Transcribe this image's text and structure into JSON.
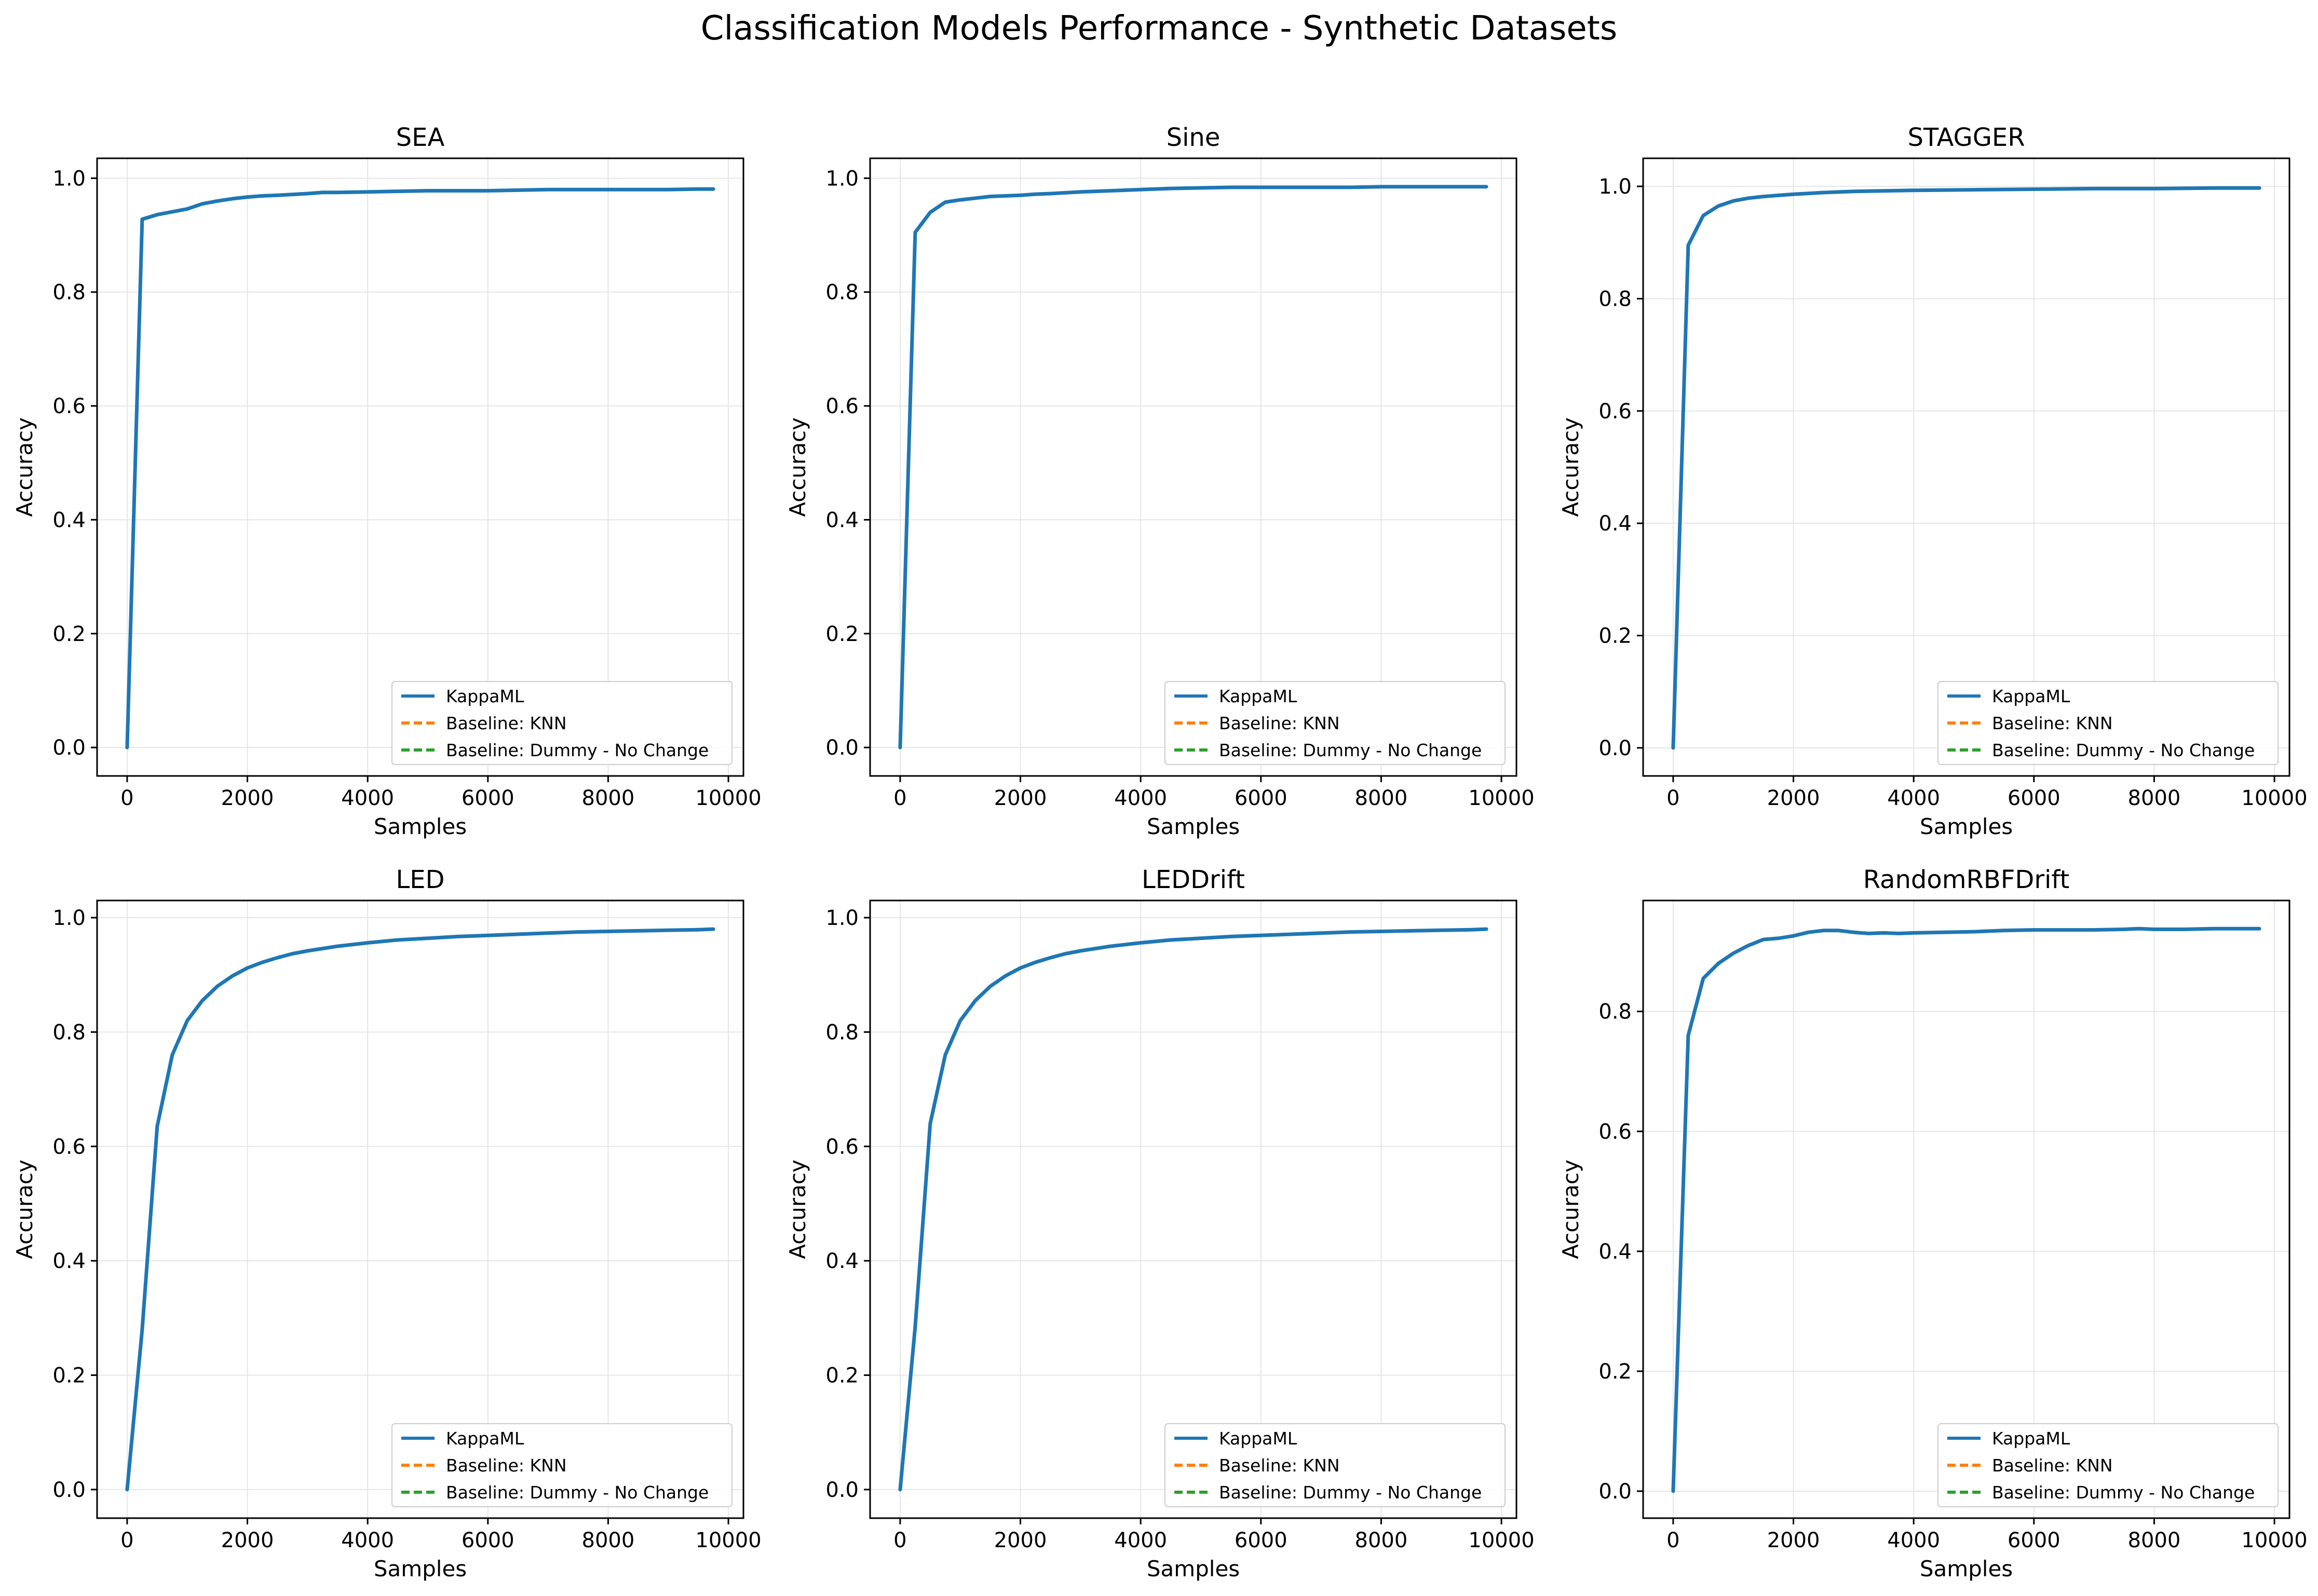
{
  "figure": {
    "title": "Classification Models Performance - Synthetic Datasets"
  },
  "colors": {
    "kappaml": "#1f77b4",
    "knn": "#ff7f0e",
    "dummy": "#2ca02c",
    "grid": "#e6e6e6"
  },
  "chart_data": [
    {
      "type": "line",
      "title": "SEA",
      "xlabel": "Samples",
      "ylabel": "Accuracy",
      "xlim": [
        -500,
        10250
      ],
      "ylim": [
        -0.05,
        1.035
      ],
      "xticks": [
        0,
        2000,
        4000,
        6000,
        8000,
        10000
      ],
      "yticks": [
        0.0,
        0.2,
        0.4,
        0.6,
        0.8,
        1.0
      ],
      "grid": true,
      "legend_position": "lower-right",
      "legend": [
        "KappaML",
        "Baseline: KNN",
        "Baseline: Dummy - No Change"
      ],
      "series": [
        {
          "name": "KappaML",
          "x": [
            0,
            250,
            500,
            750,
            1000,
            1250,
            1500,
            1750,
            2000,
            2250,
            2500,
            3000,
            3250,
            3500,
            4000,
            4500,
            5000,
            5500,
            6000,
            6500,
            7000,
            7500,
            8000,
            8500,
            9000,
            9500,
            9750
          ],
          "y": [
            0.0,
            0.928,
            0.936,
            0.941,
            0.946,
            0.955,
            0.96,
            0.964,
            0.967,
            0.969,
            0.97,
            0.973,
            0.975,
            0.975,
            0.976,
            0.977,
            0.978,
            0.978,
            0.978,
            0.979,
            0.98,
            0.98,
            0.98,
            0.98,
            0.98,
            0.981,
            0.981
          ]
        }
      ]
    },
    {
      "type": "line",
      "title": "Sine",
      "xlabel": "Samples",
      "ylabel": "Accuracy",
      "xlim": [
        -500,
        10250
      ],
      "ylim": [
        -0.05,
        1.035
      ],
      "xticks": [
        0,
        2000,
        4000,
        6000,
        8000,
        10000
      ],
      "yticks": [
        0.0,
        0.2,
        0.4,
        0.6,
        0.8,
        1.0
      ],
      "grid": true,
      "legend_position": "lower-right",
      "legend": [
        "KappaML",
        "Baseline: KNN",
        "Baseline: Dummy - No Change"
      ],
      "series": [
        {
          "name": "KappaML",
          "x": [
            0,
            250,
            500,
            750,
            1000,
            1250,
            1500,
            1750,
            2000,
            2250,
            2500,
            3000,
            3500,
            4000,
            4500,
            5000,
            5500,
            6000,
            6500,
            7000,
            7500,
            8000,
            8500,
            9000,
            9500,
            9750
          ],
          "y": [
            0.0,
            0.905,
            0.94,
            0.958,
            0.962,
            0.965,
            0.968,
            0.969,
            0.97,
            0.972,
            0.973,
            0.976,
            0.978,
            0.98,
            0.982,
            0.983,
            0.984,
            0.984,
            0.984,
            0.984,
            0.984,
            0.985,
            0.985,
            0.985,
            0.985,
            0.985
          ]
        }
      ]
    },
    {
      "type": "line",
      "title": "STAGGER",
      "xlabel": "Samples",
      "ylabel": "Accuracy",
      "xlim": [
        -500,
        10250
      ],
      "ylim": [
        -0.05,
        1.05
      ],
      "xticks": [
        0,
        2000,
        4000,
        6000,
        8000,
        10000
      ],
      "yticks": [
        0.0,
        0.2,
        0.4,
        0.6,
        0.8,
        1.0
      ],
      "grid": true,
      "legend_position": "lower-right",
      "legend": [
        "KappaML",
        "Baseline: KNN",
        "Baseline: Dummy - No Change"
      ],
      "series": [
        {
          "name": "KappaML",
          "x": [
            0,
            250,
            500,
            750,
            1000,
            1250,
            1500,
            1750,
            2000,
            2500,
            3000,
            3500,
            4000,
            5000,
            6000,
            7000,
            8000,
            9000,
            9750
          ],
          "y": [
            0.0,
            0.895,
            0.948,
            0.965,
            0.974,
            0.979,
            0.982,
            0.984,
            0.986,
            0.989,
            0.991,
            0.992,
            0.993,
            0.994,
            0.995,
            0.996,
            0.996,
            0.997,
            0.997
          ]
        }
      ]
    },
    {
      "type": "line",
      "title": "LED",
      "xlabel": "Samples",
      "ylabel": "Accuracy",
      "xlim": [
        -500,
        10250
      ],
      "ylim": [
        -0.05,
        1.03
      ],
      "xticks": [
        0,
        2000,
        4000,
        6000,
        8000,
        10000
      ],
      "yticks": [
        0.0,
        0.2,
        0.4,
        0.6,
        0.8,
        1.0
      ],
      "grid": true,
      "legend_position": "lower-right",
      "legend": [
        "KappaML",
        "Baseline: KNN",
        "Baseline: Dummy - No Change"
      ],
      "series": [
        {
          "name": "KappaML",
          "x": [
            0,
            250,
            500,
            750,
            1000,
            1250,
            1500,
            1750,
            2000,
            2250,
            2500,
            2750,
            3000,
            3500,
            4000,
            4500,
            5000,
            5500,
            6000,
            6500,
            7000,
            7500,
            8000,
            8500,
            9000,
            9500,
            9750
          ],
          "y": [
            0.0,
            0.28,
            0.635,
            0.76,
            0.82,
            0.855,
            0.88,
            0.898,
            0.912,
            0.922,
            0.93,
            0.937,
            0.942,
            0.95,
            0.956,
            0.961,
            0.964,
            0.967,
            0.969,
            0.971,
            0.973,
            0.975,
            0.976,
            0.977,
            0.978,
            0.979,
            0.98
          ]
        }
      ]
    },
    {
      "type": "line",
      "title": "LEDDrift",
      "xlabel": "Samples",
      "ylabel": "Accuracy",
      "xlim": [
        -500,
        10250
      ],
      "ylim": [
        -0.05,
        1.03
      ],
      "xticks": [
        0,
        2000,
        4000,
        6000,
        8000,
        10000
      ],
      "yticks": [
        0.0,
        0.2,
        0.4,
        0.6,
        0.8,
        1.0
      ],
      "grid": true,
      "legend_position": "lower-right",
      "legend": [
        "KappaML",
        "Baseline: KNN",
        "Baseline: Dummy - No Change"
      ],
      "series": [
        {
          "name": "KappaML",
          "x": [
            0,
            250,
            500,
            750,
            1000,
            1250,
            1500,
            1750,
            2000,
            2250,
            2500,
            2750,
            3000,
            3500,
            4000,
            4500,
            5000,
            5500,
            6000,
            6500,
            7000,
            7500,
            8000,
            8500,
            9000,
            9500,
            9750
          ],
          "y": [
            0.0,
            0.285,
            0.64,
            0.76,
            0.82,
            0.855,
            0.88,
            0.898,
            0.912,
            0.922,
            0.93,
            0.937,
            0.942,
            0.95,
            0.956,
            0.961,
            0.964,
            0.967,
            0.969,
            0.971,
            0.973,
            0.975,
            0.976,
            0.977,
            0.978,
            0.979,
            0.98
          ]
        }
      ]
    },
    {
      "type": "line",
      "title": "RandomRBFDrift",
      "xlabel": "Samples",
      "ylabel": "Accuracy",
      "xlim": [
        -500,
        10250
      ],
      "ylim": [
        -0.045,
        0.985
      ],
      "xticks": [
        0,
        2000,
        4000,
        6000,
        8000,
        10000
      ],
      "yticks": [
        0.0,
        0.2,
        0.4,
        0.6,
        0.8
      ],
      "grid": true,
      "legend_position": "lower-right",
      "legend": [
        "KappaML",
        "Baseline: KNN",
        "Baseline: Dummy - No Change"
      ],
      "series": [
        {
          "name": "KappaML",
          "x": [
            0,
            250,
            500,
            750,
            1000,
            1250,
            1500,
            1750,
            2000,
            2250,
            2500,
            2750,
            3000,
            3250,
            3500,
            3750,
            4000,
            4500,
            5000,
            5500,
            6000,
            6500,
            7000,
            7500,
            7750,
            8000,
            8500,
            9000,
            9500,
            9750
          ],
          "y": [
            0.0,
            0.76,
            0.855,
            0.88,
            0.897,
            0.91,
            0.92,
            0.922,
            0.926,
            0.932,
            0.935,
            0.935,
            0.932,
            0.93,
            0.931,
            0.93,
            0.931,
            0.932,
            0.933,
            0.935,
            0.936,
            0.936,
            0.936,
            0.937,
            0.938,
            0.937,
            0.937,
            0.938,
            0.938,
            0.938
          ]
        }
      ]
    }
  ]
}
